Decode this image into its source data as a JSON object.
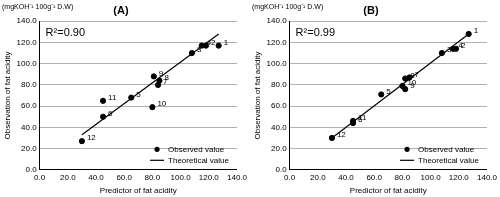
{
  "chart_data": [
    {
      "type": "scatter",
      "title": "(A)",
      "annotation": "R²=0.90",
      "y_unit": "(mgKOH⁻¹ 100g⁻¹ D.W)",
      "x_label": "Predictor of fat acidity",
      "y_label": "Observation of fat acidity",
      "xlim": [
        0,
        140
      ],
      "xticks": [
        {
          "value": 0,
          "label": "0.0"
        },
        {
          "value": 20,
          "label": "20.0"
        },
        {
          "value": 40,
          "label": "40.0"
        },
        {
          "value": 60,
          "label": "60.0"
        },
        {
          "value": 80,
          "label": "80.0"
        },
        {
          "value": 100,
          "label": "100.0"
        },
        {
          "value": 120,
          "label": "120.0"
        },
        {
          "value": 140,
          "label": "140.0"
        }
      ],
      "ylim": [
        0,
        140
      ],
      "yticks": [
        {
          "value": 0,
          "label": "0.0"
        },
        {
          "value": 20,
          "label": "20.0"
        },
        {
          "value": 40,
          "label": "40.0"
        },
        {
          "value": 60,
          "label": "60.0"
        },
        {
          "value": 80,
          "label": "80.0"
        },
        {
          "value": 100,
          "label": "100.0"
        },
        {
          "value": 120,
          "label": "120.0"
        },
        {
          "value": 140,
          "label": "140.0"
        }
      ],
      "grid": "y",
      "legend": "lower right",
      "series": [
        {
          "name": "Observed value",
          "type": "scatter",
          "color": "#000000",
          "marker": "circle",
          "x": [
            127,
            118,
            108,
            115,
            65,
            45,
            84,
            85,
            81,
            80,
            45,
            30
          ],
          "values": [
            117,
            117,
            110,
            117,
            68,
            50,
            80,
            84,
            88,
            59,
            65,
            27
          ],
          "labels": [
            "1",
            "2",
            "3",
            "4",
            "5",
            "6",
            "7",
            "8",
            "9",
            "10",
            "11",
            "12"
          ]
        },
        {
          "name": "Theoretical value",
          "type": "line",
          "color": "#000000",
          "line_style": "solid",
          "x": [
            30,
            127
          ],
          "values": [
            33,
            128
          ]
        }
      ]
    },
    {
      "type": "scatter",
      "title": "(B)",
      "annotation": "R²=0.99",
      "y_unit": "(mgKOH⁻¹ 100g⁻¹ D.W)",
      "x_label": "Predictor of fat acidity",
      "y_label": "Observation of fat acidity",
      "xlim": [
        0,
        140
      ],
      "xticks": [
        {
          "value": 0,
          "label": "0.0"
        },
        {
          "value": 20,
          "label": "20.0"
        },
        {
          "value": 40,
          "label": "40.0"
        },
        {
          "value": 60,
          "label": "60.0"
        },
        {
          "value": 80,
          "label": "80.0"
        },
        {
          "value": 100,
          "label": "100.0"
        },
        {
          "value": 120,
          "label": "120.0"
        },
        {
          "value": 140,
          "label": "140.0"
        }
      ],
      "ylim": [
        0,
        140
      ],
      "yticks": [
        {
          "value": 0,
          "label": "0.0"
        },
        {
          "value": 20,
          "label": "20.0"
        },
        {
          "value": 40,
          "label": "40.0"
        },
        {
          "value": 60,
          "label": "60.0"
        },
        {
          "value": 80,
          "label": "80.0"
        },
        {
          "value": 100,
          "label": "100.0"
        },
        {
          "value": 120,
          "label": "120.0"
        },
        {
          "value": 140,
          "label": "140.0"
        }
      ],
      "grid": "y",
      "legend": "lower right",
      "series": [
        {
          "name": "Observed value",
          "type": "scatter",
          "color": "#000000",
          "marker": "circle",
          "x": [
            127,
            118,
            108,
            116,
            65,
            45,
            85,
            82,
            82,
            80,
            45,
            30
          ],
          "values": [
            128,
            114,
            110,
            114,
            71,
            44,
            87,
            86,
            76,
            79,
            46,
            30
          ],
          "labels": [
            "1",
            "2",
            "3",
            "4",
            "5",
            "6",
            "7",
            "8",
            "9",
            "10",
            "11",
            "12"
          ]
        },
        {
          "name": "Theoretical value",
          "type": "line",
          "color": "#000000",
          "line_style": "solid",
          "x": [
            30,
            127
          ],
          "values": [
            30,
            128
          ]
        }
      ]
    }
  ]
}
